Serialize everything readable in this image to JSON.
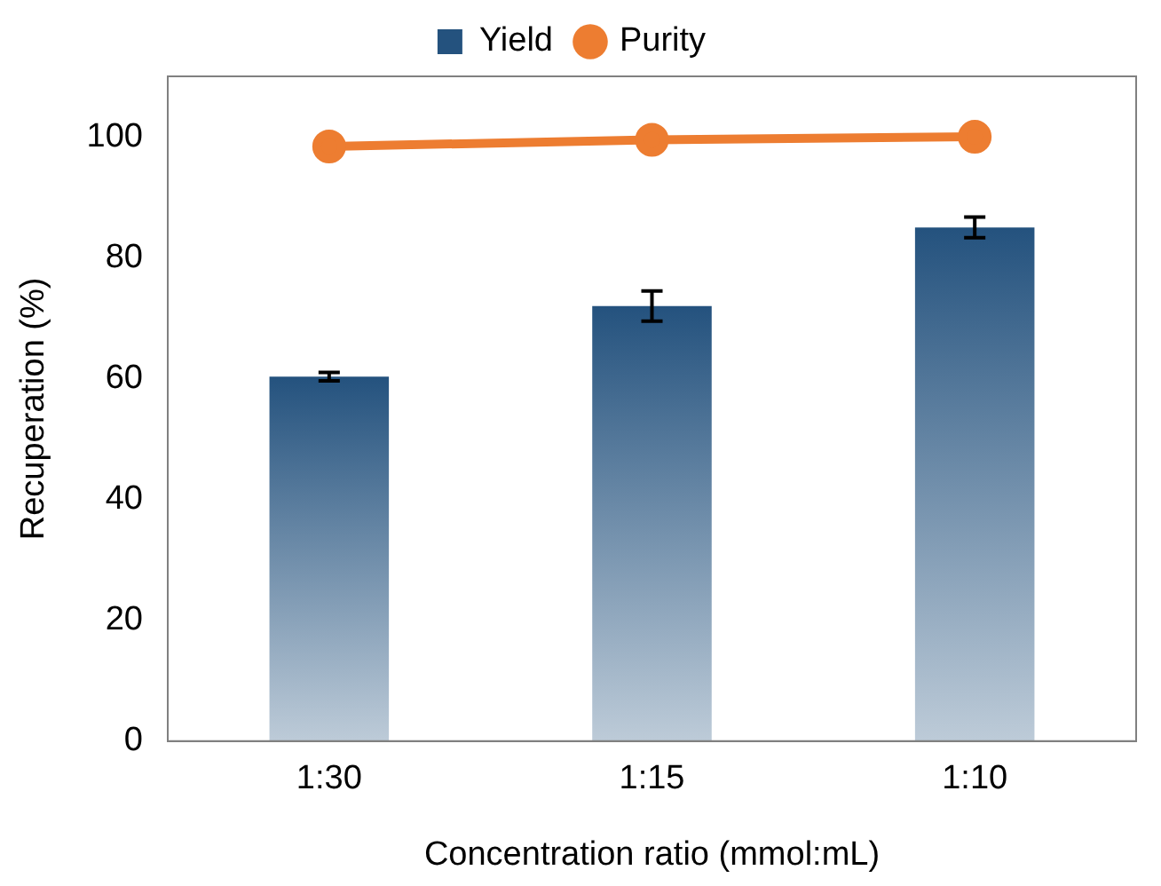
{
  "chart_data": {
    "type": "bar",
    "xlabel": "Concentration ratio (mmol:mL)",
    "ylabel": "Recuperation (%)",
    "categories": [
      "1:30",
      "1:15",
      "1:10"
    ],
    "series": [
      {
        "name": "Yield",
        "color": "#24527e",
        "values": [
          60.3,
          72,
          85
        ],
        "errors": [
          0.7,
          2.5,
          1.7
        ]
      },
      {
        "name": "Purity",
        "type": "line",
        "color": "#ed7d31",
        "values": [
          98.4,
          99.5,
          100
        ],
        "marker": "circle"
      }
    ],
    "ylim": [
      0,
      110
    ],
    "yticks": [
      0,
      20,
      40,
      60,
      80,
      100
    ],
    "grid": false,
    "legend": "top"
  }
}
